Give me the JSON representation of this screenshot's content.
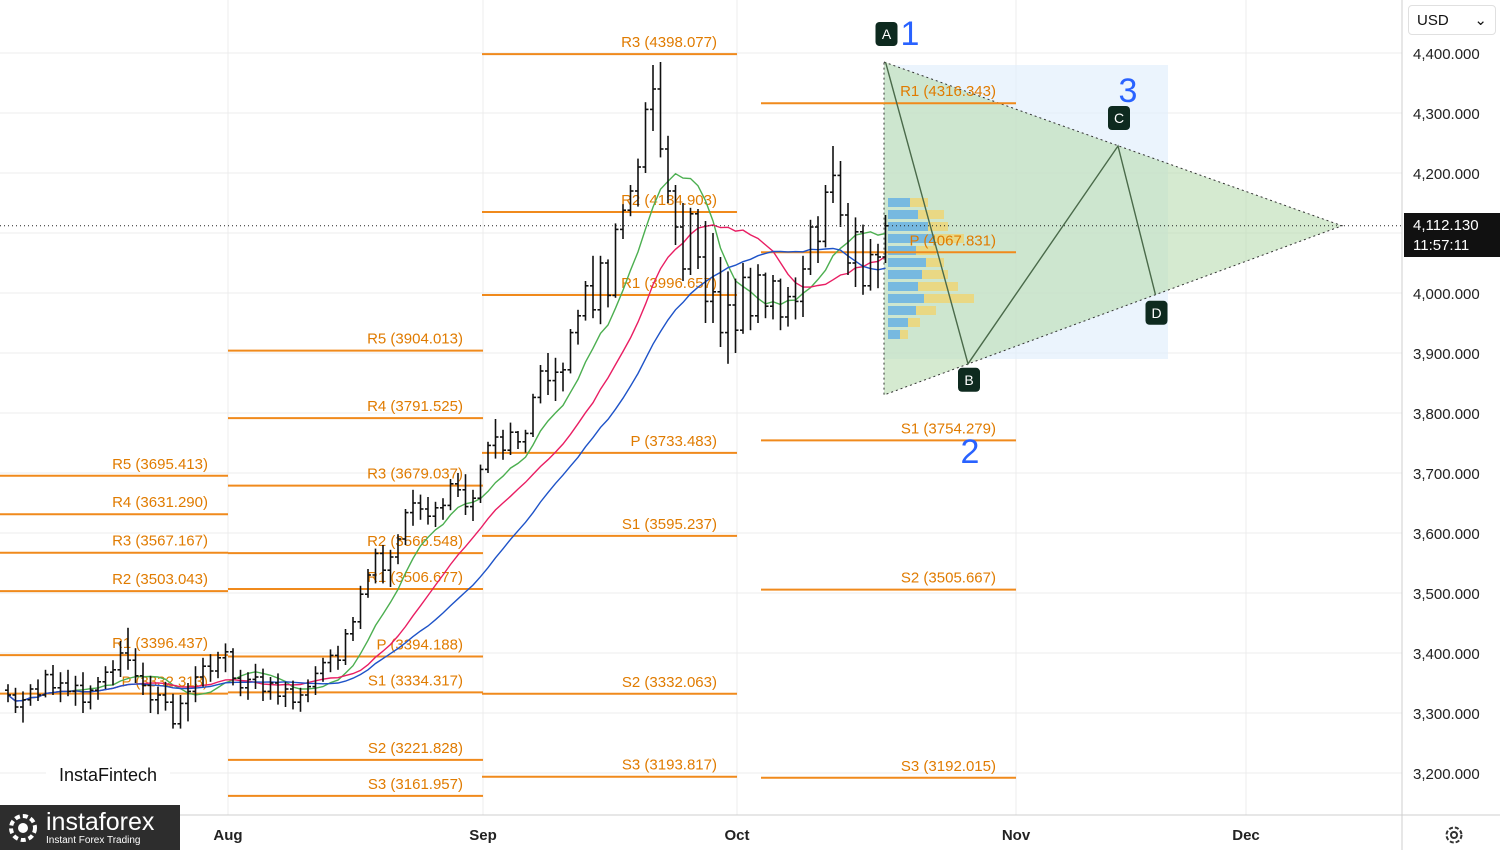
{
  "currency_selector": {
    "label": "USD",
    "chevron": "chevron-down-icon"
  },
  "last_price": {
    "value": "4,112.130",
    "countdown": "11:57:11"
  },
  "watermarks": {
    "insta_fintech": "InstaFintech",
    "brand_name": "instaforex",
    "brand_tagline": "Instant Forex Trading"
  },
  "settings_icon": "settings-icon",
  "chart_data": {
    "type": "ohlc",
    "x_axis": {
      "labels": [
        "Aug",
        "Sep",
        "Oct",
        "Nov",
        "Dec"
      ]
    },
    "y_axis": {
      "position": "right",
      "range": [
        3150,
        4450
      ],
      "ticks": [
        4400,
        4300,
        4200,
        4100,
        4000,
        3900,
        3800,
        3700,
        3600,
        3500,
        3400,
        3300,
        3200
      ],
      "tick_labels": [
        "4,400.000",
        "4,300.000",
        "4,200.000",
        "4,100.000",
        "4,000.000",
        "3,900.000",
        "3,800.000",
        "3,700.000",
        "3,600.000",
        "3,500.000",
        "3,400.000",
        "3,300.000",
        "3,200.000"
      ]
    },
    "grid": true,
    "last_price": 4112.13,
    "pivot_sets": [
      {
        "period": "before Aug",
        "levels": [
          {
            "label": "R5 (3695.413)",
            "value": 3695.413
          },
          {
            "label": "R4 (3631.290)",
            "value": 3631.29
          },
          {
            "label": "R3 (3567.167)",
            "value": 3567.167
          },
          {
            "label": "R2 (3503.043)",
            "value": 3503.043
          },
          {
            "label": "R1 (3396.437)",
            "value": 3396.437
          },
          {
            "label": "P (3332.313)",
            "value": 3332.313
          }
        ]
      },
      {
        "period": "Aug",
        "levels": [
          {
            "label": "R5 (3904.013)",
            "value": 3904.013
          },
          {
            "label": "R4 (3791.525)",
            "value": 3791.525
          },
          {
            "label": "R3 (3679.037)",
            "value": 3679.037
          },
          {
            "label": "R2 (3566.548)",
            "value": 3566.548
          },
          {
            "label": "R1 (3506.677)",
            "value": 3506.677
          },
          {
            "label": "P (3394.188)",
            "value": 3394.188
          },
          {
            "label": "S1 (3334.317)",
            "value": 3334.317
          },
          {
            "label": "S2 (3221.828)",
            "value": 3221.828
          },
          {
            "label": "S3 (3161.957)",
            "value": 3161.957
          }
        ]
      },
      {
        "period": "Sep",
        "levels": [
          {
            "label": "R3 (4398.077)",
            "value": 4398.077
          },
          {
            "label": "R2 (4134.903)",
            "value": 4134.903
          },
          {
            "label": "R1 (3996.657)",
            "value": 3996.657
          },
          {
            "label": "P (3733.483)",
            "value": 3733.483
          },
          {
            "label": "S1 (3595.237)",
            "value": 3595.237
          },
          {
            "label": "S2 (3332.063)",
            "value": 3332.063
          },
          {
            "label": "S3 (3193.817)",
            "value": 3193.817
          }
        ]
      },
      {
        "period": "Oct",
        "levels": [
          {
            "label": "R1 (4316.343)",
            "value": 4316.343
          },
          {
            "label": "P (4067.831)",
            "value": 4067.831
          },
          {
            "label": "S1 (3754.279)",
            "value": 3754.279
          },
          {
            "label": "S2 (3505.667)",
            "value": 3505.667
          },
          {
            "label": "S3 (3192.015)",
            "value": 3192.015
          }
        ]
      }
    ],
    "pattern_points": [
      {
        "label": "A",
        "value": 4385
      },
      {
        "label": "B",
        "value": 3882
      },
      {
        "label": "C",
        "value": 4245
      },
      {
        "label": "D",
        "value": 3997
      }
    ],
    "wave_labels": [
      "1",
      "2",
      "3"
    ],
    "triangle": {
      "upper_start": 4385,
      "lower_start": 3830,
      "apex": 4112
    },
    "moving_averages": [
      {
        "color": "#4caf50"
      },
      {
        "color": "#e91e63"
      },
      {
        "color": "#1e53c8"
      }
    ],
    "ohlc": [
      [
        3338,
        3348,
        3318,
        3330
      ],
      [
        3330,
        3342,
        3300,
        3310
      ],
      [
        3310,
        3336,
        3284,
        3322
      ],
      [
        3322,
        3348,
        3312,
        3340
      ],
      [
        3340,
        3356,
        3320,
        3330
      ],
      [
        3330,
        3372,
        3326,
        3364
      ],
      [
        3364,
        3380,
        3330,
        3342
      ],
      [
        3342,
        3368,
        3318,
        3350
      ],
      [
        3350,
        3372,
        3328,
        3336
      ],
      [
        3336,
        3362,
        3312,
        3346
      ],
      [
        3346,
        3368,
        3300,
        3318
      ],
      [
        3318,
        3346,
        3306,
        3338
      ],
      [
        3338,
        3360,
        3322,
        3352
      ],
      [
        3352,
        3378,
        3340,
        3368
      ],
      [
        3368,
        3388,
        3346,
        3372
      ],
      [
        3372,
        3420,
        3360,
        3400
      ],
      [
        3400,
        3442,
        3372,
        3388
      ],
      [
        3388,
        3408,
        3350,
        3362
      ],
      [
        3362,
        3384,
        3330,
        3346
      ],
      [
        3346,
        3362,
        3300,
        3322
      ],
      [
        3322,
        3344,
        3298,
        3330
      ],
      [
        3330,
        3352,
        3304,
        3318
      ],
      [
        3318,
        3332,
        3274,
        3282
      ],
      [
        3282,
        3330,
        3274,
        3316
      ],
      [
        3316,
        3350,
        3286,
        3336
      ],
      [
        3336,
        3378,
        3318,
        3360
      ],
      [
        3360,
        3392,
        3344,
        3378
      ],
      [
        3378,
        3398,
        3352,
        3370
      ],
      [
        3370,
        3402,
        3358,
        3392
      ],
      [
        3392,
        3416,
        3368,
        3402
      ],
      [
        3402,
        3408,
        3346,
        3358
      ],
      [
        3358,
        3372,
        3328,
        3342
      ],
      [
        3342,
        3368,
        3322,
        3356
      ],
      [
        3356,
        3382,
        3340,
        3360
      ],
      [
        3360,
        3374,
        3320,
        3336
      ],
      [
        3336,
        3360,
        3322,
        3350
      ],
      [
        3350,
        3366,
        3314,
        3328
      ],
      [
        3328,
        3352,
        3310,
        3340
      ],
      [
        3340,
        3354,
        3306,
        3318
      ],
      [
        3318,
        3342,
        3302,
        3330
      ],
      [
        3330,
        3356,
        3318,
        3344
      ],
      [
        3344,
        3378,
        3330,
        3366
      ],
      [
        3366,
        3392,
        3352,
        3384
      ],
      [
        3384,
        3406,
        3368,
        3396
      ],
      [
        3396,
        3412,
        3372,
        3388
      ],
      [
        3388,
        3440,
        3380,
        3432
      ],
      [
        3432,
        3460,
        3420,
        3452
      ],
      [
        3452,
        3512,
        3440,
        3498
      ],
      [
        3498,
        3540,
        3492,
        3530
      ],
      [
        3530,
        3574,
        3516,
        3566
      ],
      [
        3566,
        3580,
        3516,
        3538
      ],
      [
        3538,
        3572,
        3510,
        3560
      ],
      [
        3560,
        3598,
        3548,
        3590
      ],
      [
        3590,
        3640,
        3580,
        3634
      ],
      [
        3634,
        3672,
        3612,
        3650
      ],
      [
        3650,
        3664,
        3622,
        3640
      ],
      [
        3640,
        3660,
        3614,
        3628
      ],
      [
        3628,
        3652,
        3610,
        3642
      ],
      [
        3642,
        3658,
        3622,
        3646
      ],
      [
        3646,
        3690,
        3638,
        3682
      ],
      [
        3682,
        3700,
        3660,
        3672
      ],
      [
        3672,
        3698,
        3630,
        3644
      ],
      [
        3644,
        3672,
        3620,
        3658
      ],
      [
        3658,
        3714,
        3650,
        3706
      ],
      [
        3706,
        3752,
        3700,
        3746
      ],
      [
        3746,
        3790,
        3724,
        3760
      ],
      [
        3760,
        3772,
        3722,
        3738
      ],
      [
        3738,
        3784,
        3730,
        3768
      ],
      [
        3768,
        3770,
        3740,
        3752
      ],
      [
        3752,
        3772,
        3734,
        3766
      ],
      [
        3766,
        3832,
        3760,
        3826
      ],
      [
        3826,
        3880,
        3816,
        3870
      ],
      [
        3870,
        3900,
        3830,
        3854
      ],
      [
        3854,
        3892,
        3820,
        3868
      ],
      [
        3868,
        3884,
        3836,
        3872
      ],
      [
        3872,
        3940,
        3866,
        3934
      ],
      [
        3934,
        3972,
        3914,
        3962
      ],
      [
        3962,
        4020,
        3954,
        4012
      ],
      [
        4012,
        4062,
        3958,
        3972
      ],
      [
        3972,
        4062,
        3948,
        4050
      ],
      [
        4050,
        4056,
        3976,
        3996
      ],
      [
        3996,
        4116,
        3992,
        4106
      ],
      [
        4106,
        4148,
        4090,
        4138
      ],
      [
        4138,
        4180,
        4128,
        4170
      ],
      [
        4170,
        4224,
        4144,
        4210
      ],
      [
        4210,
        4318,
        4200,
        4306
      ],
      [
        4306,
        4380,
        4270,
        4340
      ],
      [
        4340,
        4385,
        4226,
        4240
      ],
      [
        4240,
        4262,
        4150,
        4170
      ],
      [
        4170,
        4180,
        4080,
        4110
      ],
      [
        4110,
        4150,
        4020,
        4040
      ],
      [
        4040,
        4142,
        4030,
        4132
      ],
      [
        4132,
        4140,
        4040,
        4060
      ],
      [
        4060,
        4120,
        3950,
        3986
      ],
      [
        3986,
        4100,
        3950,
        4002
      ],
      [
        4002,
        4060,
        3910,
        3934
      ],
      [
        3934,
        4036,
        3882,
        3980
      ],
      [
        3980,
        4024,
        3900,
        3938
      ],
      [
        3938,
        4050,
        3932,
        4026
      ],
      [
        4026,
        4042,
        3938,
        3962
      ],
      [
        3962,
        4048,
        3950,
        4030
      ],
      [
        4030,
        4034,
        3958,
        3978
      ],
      [
        3978,
        4030,
        3956,
        4020
      ],
      [
        4020,
        4024,
        3938,
        3960
      ],
      [
        3960,
        4010,
        3944,
        3994
      ],
      [
        3994,
        4026,
        3956,
        3986
      ],
      [
        3986,
        4062,
        3960,
        4040
      ],
      [
        4040,
        4122,
        4030,
        4110
      ],
      [
        4110,
        4128,
        4050,
        4086
      ],
      [
        4086,
        4180,
        4076,
        4168
      ],
      [
        4168,
        4245,
        4150,
        4196
      ],
      [
        4196,
        4220,
        4110,
        4130
      ],
      [
        4130,
        4150,
        4030,
        4050
      ],
      [
        4050,
        4126,
        4010,
        4102
      ],
      [
        4102,
        4114,
        3997,
        4012
      ],
      [
        4012,
        4090,
        4004,
        4064
      ],
      [
        4064,
        4082,
        4008,
        4060
      ],
      [
        4060,
        4130,
        4050,
        4112
      ]
    ]
  }
}
